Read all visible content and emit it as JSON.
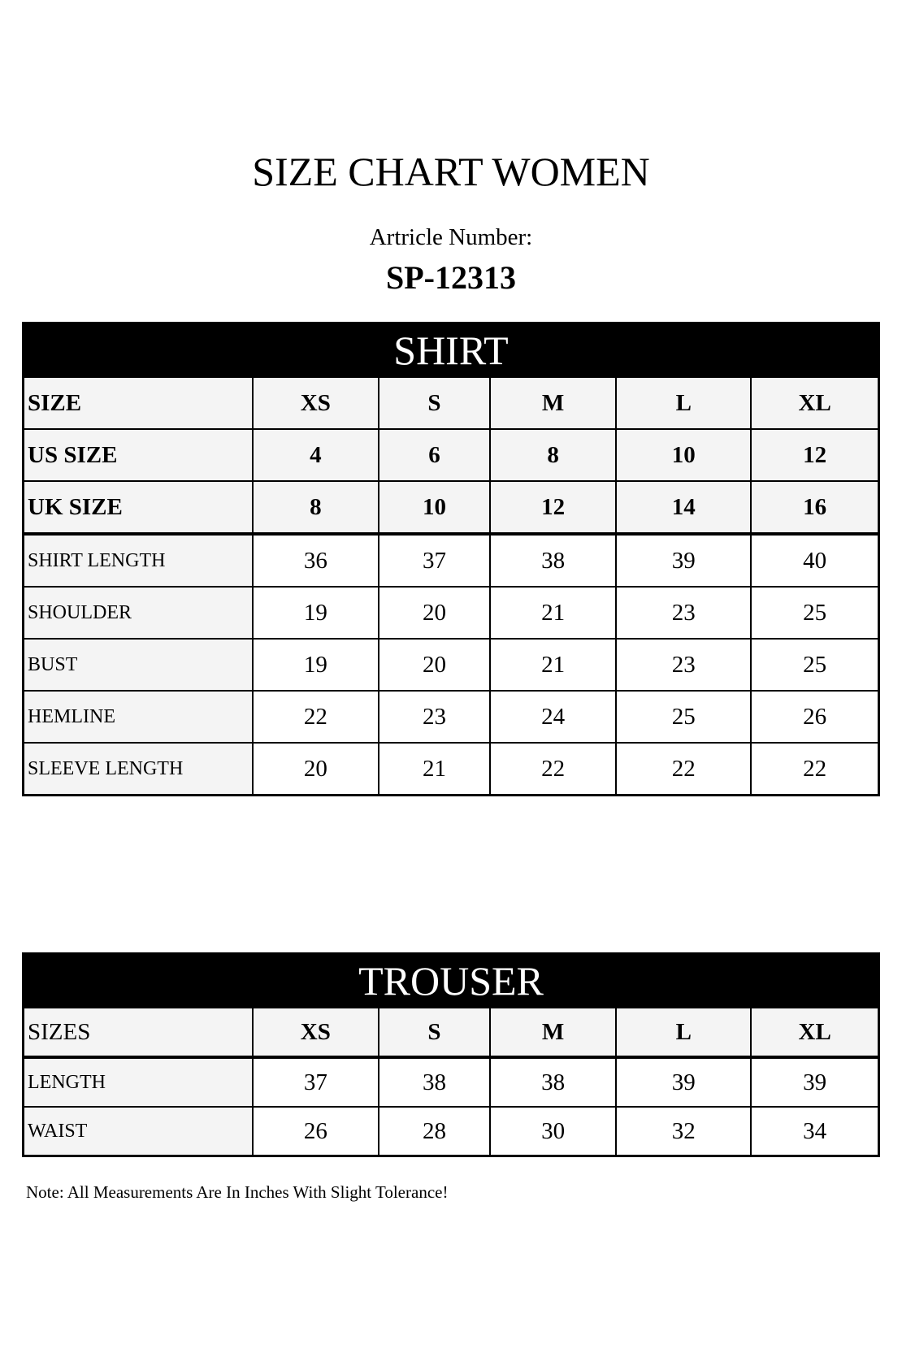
{
  "title": "SIZE CHART WOMEN",
  "article_label": "Artricle Number:",
  "article_number": "SP-12313",
  "shirt": {
    "heading": "SHIRT",
    "header_rows": [
      [
        "SIZE",
        "XS",
        "S",
        "M",
        "L",
        "XL"
      ],
      [
        "US SIZE",
        "4",
        "6",
        "8",
        "10",
        "12"
      ],
      [
        "UK SIZE",
        "8",
        "10",
        "12",
        "14",
        "16"
      ]
    ],
    "rows": [
      [
        "SHIRT LENGTH",
        "36",
        "37",
        "38",
        "39",
        "40"
      ],
      [
        "SHOULDER",
        "19",
        "20",
        "21",
        "23",
        "25"
      ],
      [
        "BUST",
        "19",
        "20",
        "21",
        "23",
        "25"
      ],
      [
        "HEMLINE",
        "22",
        "23",
        "24",
        "25",
        "26"
      ],
      [
        "SLEEVE LENGTH",
        "20",
        "21",
        "22",
        "22",
        "22"
      ]
    ]
  },
  "trouser": {
    "heading": "TROUSER",
    "header_rows": [
      [
        "SIZES",
        "XS",
        "S",
        "M",
        "L",
        "XL"
      ]
    ],
    "rows": [
      [
        "LENGTH",
        "37",
        "38",
        "38",
        "39",
        "39"
      ],
      [
        "WAIST",
        "26",
        "28",
        "30",
        "32",
        "34"
      ]
    ]
  },
  "note": "Note: All Measurements Are In Inches With Slight Tolerance!"
}
